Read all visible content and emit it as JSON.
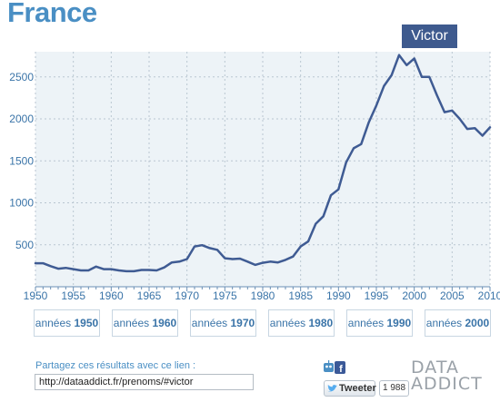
{
  "header": {
    "title": "France",
    "name_badge": "Victor"
  },
  "chart_data": {
    "type": "line",
    "title": "France",
    "xlabel": "",
    "ylabel": "",
    "xlim": [
      1950,
      2010
    ],
    "ylim": [
      0,
      2800
    ],
    "x_ticks": [
      "1950",
      "1955",
      "1960",
      "1965",
      "1970",
      "1975",
      "1980",
      "1985",
      "1990",
      "1995",
      "2000",
      "2005",
      "2010"
    ],
    "y_ticks": [
      "500",
      "1000",
      "1500",
      "2000",
      "2500"
    ],
    "grid": true,
    "series": [
      {
        "name": "Victor",
        "color": "#3f5b93",
        "x": [
          1950,
          1951,
          1952,
          1953,
          1954,
          1955,
          1956,
          1957,
          1958,
          1959,
          1960,
          1961,
          1962,
          1963,
          1964,
          1965,
          1966,
          1967,
          1968,
          1969,
          1970,
          1971,
          1972,
          1973,
          1974,
          1975,
          1976,
          1977,
          1978,
          1979,
          1980,
          1981,
          1982,
          1983,
          1984,
          1985,
          1986,
          1987,
          1988,
          1989,
          1990,
          1991,
          1992,
          1993,
          1994,
          1995,
          1996,
          1997,
          1998,
          1999,
          2000,
          2001,
          2002,
          2003,
          2004,
          2005,
          2006,
          2007,
          2008,
          2009,
          2010
        ],
        "values": [
          280,
          280,
          245,
          215,
          225,
          210,
          195,
          195,
          240,
          210,
          210,
          195,
          185,
          185,
          200,
          200,
          195,
          230,
          290,
          300,
          330,
          480,
          495,
          460,
          440,
          340,
          330,
          335,
          300,
          260,
          285,
          300,
          290,
          320,
          360,
          480,
          540,
          750,
          840,
          1090,
          1160,
          1480,
          1650,
          1700,
          1960,
          2160,
          2390,
          2520,
          2760,
          2640,
          2720,
          2500,
          2500,
          2280,
          2080,
          2100,
          2000,
          1880,
          1890,
          1800,
          1900
        ]
      }
    ]
  },
  "decades": [
    {
      "prefix": "années",
      "year": "1950"
    },
    {
      "prefix": "années",
      "year": "1960"
    },
    {
      "prefix": "années",
      "year": "1970"
    },
    {
      "prefix": "années",
      "year": "1980"
    },
    {
      "prefix": "années",
      "year": "1990"
    },
    {
      "prefix": "années",
      "year": "2000"
    }
  ],
  "share": {
    "label": "Partagez ces résultats avec ce lien :",
    "link": "http://dataaddict.fr/prenoms/#victor"
  },
  "social": {
    "tweet_label": "Tweeter",
    "tweet_count": "1 988",
    "icons": [
      "robot-icon",
      "facebook-icon",
      "twitter-bird-icon"
    ]
  },
  "logo": {
    "line1": "DATA",
    "line2": "ADDICT"
  },
  "colors": {
    "title": "#4a8fc4",
    "badge_bg": "#3e5a8e",
    "plot_bg": "#edf3f7",
    "line": "#3f5b93",
    "axis_text": "#3a74a8"
  }
}
